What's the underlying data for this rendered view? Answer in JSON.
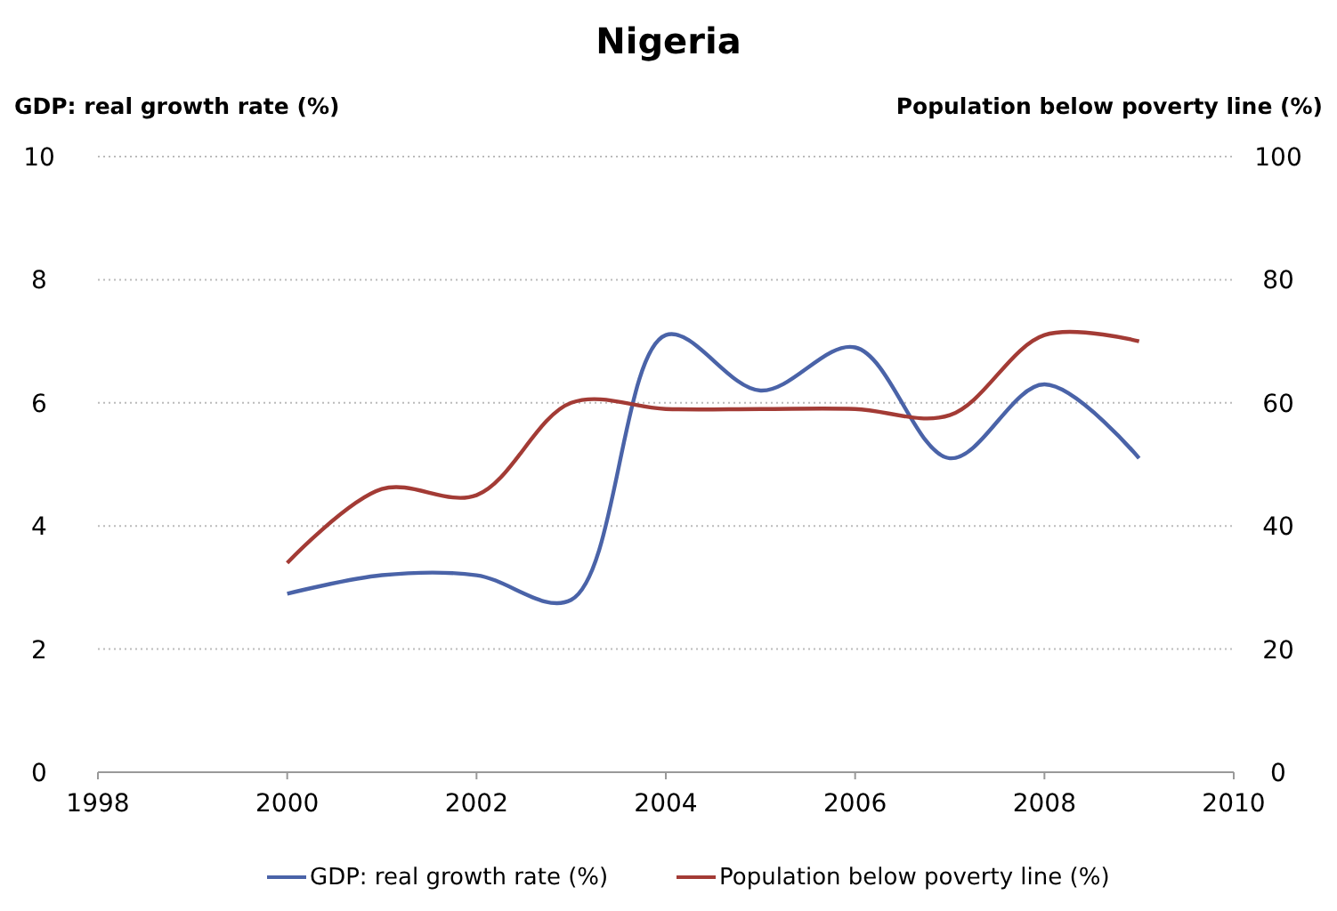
{
  "chart_data": {
    "type": "line",
    "title": "Nigeria",
    "ylabel": "GDP: real growth rate (%)",
    "y2label": "Population below poverty line (%)",
    "x": [
      2000,
      2001,
      2002,
      2003,
      2004,
      2005,
      2006,
      2007,
      2008,
      2009
    ],
    "xlim": [
      1998,
      2010
    ],
    "xticks": [
      1998,
      2000,
      2002,
      2004,
      2006,
      2008,
      2010
    ],
    "ylim": [
      0,
      10
    ],
    "yticks": [
      0,
      2,
      4,
      6,
      8,
      10
    ],
    "y2lim": [
      0,
      100
    ],
    "y2ticks": [
      0,
      20,
      40,
      60,
      80,
      100
    ],
    "grid": "y",
    "legend": "bottom",
    "marker": "none",
    "line_style": "solid",
    "series": [
      {
        "name": "GDP: real growth rate (%)",
        "color": "#4a63a8",
        "values": [
          2.9,
          3.2,
          3.2,
          2.8,
          7.1,
          6.2,
          6.9,
          5.1,
          6.3,
          5.1
        ]
      },
      {
        "name": "Population below poverty line (%)",
        "color": "#a33b35",
        "axis": "y2",
        "values": [
          34,
          46,
          45,
          60,
          59,
          59,
          59,
          58,
          71,
          70
        ]
      }
    ]
  }
}
